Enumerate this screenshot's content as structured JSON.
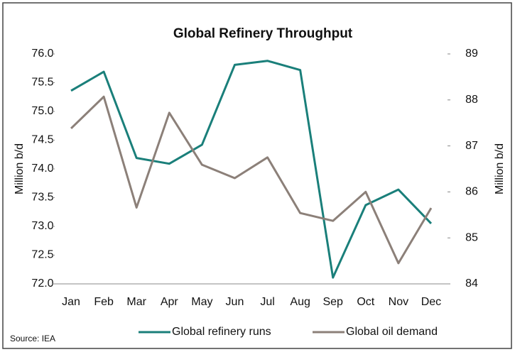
{
  "chart_data": {
    "type": "line",
    "title": "Global Refinery Throughput",
    "ylabel": "Million b/d",
    "y2label": "Million b/d",
    "source": "Source: IEA",
    "categories": [
      "Jan",
      "Feb",
      "Mar",
      "Apr",
      "May",
      "Jun",
      "Jul",
      "Aug",
      "Sep",
      "Oct",
      "Nov",
      "Dec"
    ],
    "series": [
      {
        "name": "Global refinery runs",
        "color": "#1a7f7a",
        "values": [
          75.36,
          75.69,
          74.19,
          74.09,
          74.42,
          75.81,
          75.88,
          75.72,
          72.11,
          73.37,
          73.64,
          73.05
        ]
      },
      {
        "name": "Global oil demand",
        "color": "#8c8079",
        "axis": "y2",
        "values": [
          87.38,
          88.07,
          85.66,
          87.72,
          86.59,
          86.3,
          86.75,
          85.54,
          85.37,
          86.0,
          84.45,
          85.65
        ]
      }
    ],
    "ylim": [
      72,
      76
    ],
    "yticks": [
      {
        "value": 72,
        "label": "72.0"
      },
      {
        "value": 72.5,
        "label": "72.5"
      },
      {
        "value": 73,
        "label": "73.0"
      },
      {
        "value": 73.5,
        "label": "73.5"
      },
      {
        "value": 74,
        "label": "74.0"
      },
      {
        "value": 74.5,
        "label": "74.5"
      },
      {
        "value": 75,
        "label": "75.0"
      },
      {
        "value": 75.5,
        "label": "75.5"
      },
      {
        "value": 76,
        "label": "76.0"
      }
    ],
    "y2lim": [
      84,
      89
    ],
    "y2ticks": [
      84,
      85,
      86,
      87,
      88,
      89
    ],
    "legend": "bottom"
  }
}
